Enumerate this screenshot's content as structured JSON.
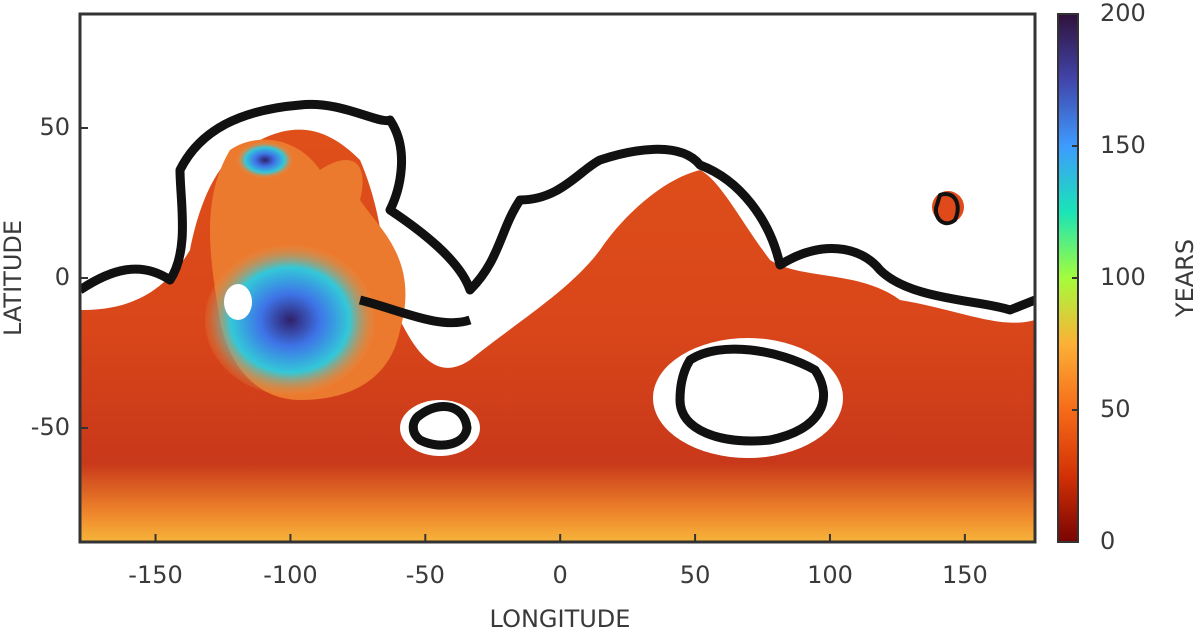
{
  "chart_data": {
    "type": "heatmap",
    "x_label": "LONGITUDE",
    "y_label": "LATITUDE",
    "colorbar_label": "YEARS",
    "xlim": [
      -178,
      176
    ],
    "ylim": [
      -88,
      88
    ],
    "xticks": [
      -150,
      -100,
      -50,
      0,
      50,
      100,
      150
    ],
    "yticks": [
      -50,
      0,
      50
    ],
    "clim": [
      0,
      200
    ],
    "cticks": [
      0,
      50,
      100,
      150,
      200
    ],
    "colormap": [
      "#7a0403",
      "#d23105",
      "#f66b19",
      "#fcb036",
      "#a4fc3c",
      "#1ae4b6",
      "#3e9bfe",
      "#4145ab",
      "#30123b"
    ]
  }
}
